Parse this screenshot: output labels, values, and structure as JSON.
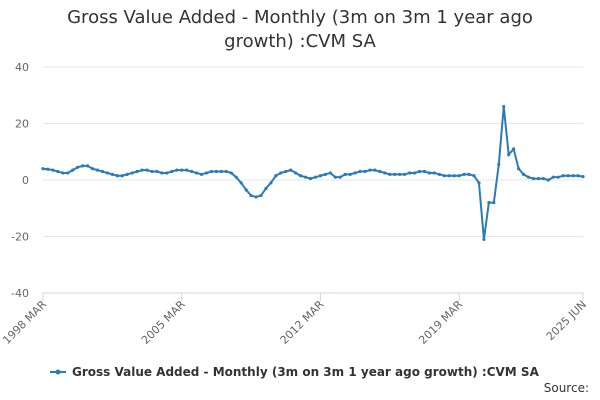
{
  "chart_data": {
    "type": "line",
    "title": "Gross Value Added - Monthly (3m on 3m 1 year ago growth) :CVM SA",
    "source": "Source:",
    "categories": [
      "1998 MAR",
      null,
      null,
      null,
      null,
      null,
      null,
      null,
      null,
      null,
      null,
      null,
      null,
      null,
      null,
      null,
      null,
      null,
      null,
      null,
      null,
      null,
      null,
      null,
      null,
      null,
      null,
      null,
      "2005 MAR",
      null,
      null,
      null,
      null,
      null,
      null,
      null,
      null,
      null,
      null,
      null,
      null,
      null,
      null,
      null,
      null,
      null,
      null,
      null,
      null,
      null,
      null,
      null,
      null,
      null,
      null,
      null,
      "2012 MAR",
      null,
      null,
      null,
      null,
      null,
      null,
      null,
      null,
      null,
      null,
      null,
      null,
      null,
      null,
      null,
      null,
      null,
      null,
      null,
      null,
      null,
      null,
      null,
      null,
      null,
      null,
      null,
      "2019 MAR",
      null,
      null,
      null,
      null,
      null,
      null,
      null,
      null,
      null,
      null,
      null,
      null,
      null,
      null,
      null,
      null,
      null,
      null,
      null,
      null,
      null,
      null,
      null,
      null,
      "2025 JUN"
    ],
    "series": [
      {
        "name": "Gross Value Added - Monthly (3m on 3m 1 year ago growth) :CVM SA",
        "color": "#2b7bb9",
        "values": [
          4,
          3.8,
          3.5,
          3,
          2.5,
          2.5,
          3.5,
          4.5,
          5,
          5,
          4,
          3.5,
          3,
          2.5,
          2,
          1.5,
          1.5,
          2,
          2.5,
          3,
          3.5,
          3.5,
          3,
          3,
          2.5,
          2.5,
          3,
          3.5,
          3.5,
          3.5,
          3,
          2.5,
          2,
          2.5,
          3,
          3,
          3,
          3,
          2.5,
          1,
          -1,
          -3.5,
          -5.5,
          -6,
          -5.5,
          -3,
          -1,
          1.5,
          2.5,
          3,
          3.5,
          2.5,
          1.5,
          1,
          0.5,
          1,
          1.5,
          2,
          2.5,
          1,
          1,
          2,
          2,
          2.5,
          3,
          3,
          3.5,
          3.5,
          3,
          2.5,
          2,
          2,
          2,
          2,
          2.5,
          2.5,
          3,
          3,
          2.5,
          2.5,
          2,
          1.5,
          1.5,
          1.5,
          1.5,
          2,
          2,
          1.5,
          -1,
          -21,
          -8,
          -8,
          5.5,
          26,
          9,
          11,
          4,
          2,
          1,
          0.5,
          0.5,
          0.5,
          0,
          1,
          1,
          1.5,
          1.5,
          1.5,
          1.5,
          1.2
        ]
      }
    ],
    "ylim": [
      -40,
      40
    ],
    "yticks": [
      -40,
      -20,
      0,
      20,
      40
    ],
    "grid": true,
    "legend": "bottom"
  }
}
